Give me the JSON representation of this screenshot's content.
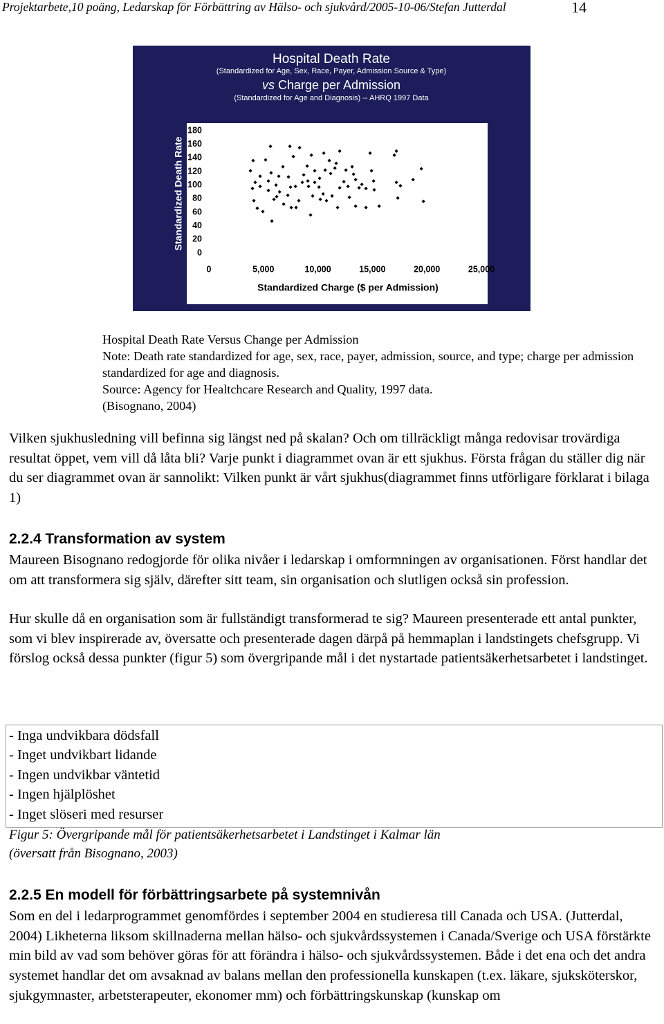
{
  "header": {
    "text": "Projektarbete,10 poäng, Ledarskap för Förbättring av Hälso- och sjukvård/2005-10-06/Stefan Jutterdal",
    "page_number": "14"
  },
  "chart_data": {
    "type": "scatter",
    "title": "Hospital Death Rate",
    "subtitle": "(Standardized for Age, Sex, Race, Payer, Admission Source & Type)",
    "title_2_prefix": "vs",
    "title_2": "Charge per Admission",
    "subtitle_2": "(Standardized for Age and Diagnosis) -- AHRQ 1997 Data",
    "x_label": "Standardized Charge ($ per Admission)",
    "y_label": "Standardized Death Rate",
    "color": "#000000",
    "xlim": [
      0,
      25000
    ],
    "xticks": [
      0,
      {
        "value": 5000,
        "label": "5,000"
      },
      {
        "value": 10000,
        "label": "10,000"
      },
      {
        "value": 15000,
        "label": "15,000"
      },
      {
        "value": 20000,
        "label": "20,000"
      },
      {
        "value": 25000,
        "label": "25,000"
      }
    ],
    "ylim": [
      0,
      180
    ],
    "yticks": [
      0,
      20,
      40,
      60,
      80,
      100,
      120,
      140,
      160,
      180
    ],
    "x": [
      5650,
      7430,
      8320,
      12000,
      14790,
      17200,
      17010,
      10540,
      3810,
      4060,
      5200,
      6790,
      7750,
      9020,
      9400,
      11050,
      11680,
      13140,
      13270,
      14920,
      19490,
      18730,
      19680,
      17200,
      17570,
      17330,
      15620,
      14410,
      13460,
      11810,
      9330,
      5780,
      4950,
      4440,
      4130,
      4000,
      4700,
      5460,
      6160,
      6480,
      5970,
      6860,
      7560,
      8000,
      8250,
      7940,
      8570,
      9140,
      9710,
      10100,
      10480,
      10790,
      11300,
      12000,
      12380,
      12760,
      12890,
      13780,
      14030,
      14410,
      15110,
      15170,
      10160,
      10670,
      11170,
      11560,
      9710,
      8700,
      7300,
      6410,
      5710,
      4700,
      4250,
      6220,
      7240,
      9520,
      10220,
      12570,
      13460,
      5460,
      7490,
      9080
    ],
    "values": [
      157,
      157,
      155,
      150,
      147,
      150,
      144,
      147,
      121,
      136,
      137,
      127,
      142,
      128,
      144,
      136,
      132,
      127,
      116,
      121,
      124,
      108,
      76,
      104,
      99,
      81,
      69,
      67,
      69,
      67,
      56,
      47,
      61,
      66,
      77,
      95,
      98,
      106,
      100,
      90,
      79,
      72,
      67,
      67,
      77,
      98,
      104,
      98,
      104,
      97,
      87,
      77,
      84,
      96,
      105,
      98,
      82,
      96,
      101,
      95,
      106,
      93,
      110,
      122,
      117,
      125,
      121,
      115,
      112,
      113,
      118,
      113,
      104,
      83,
      85,
      84,
      79,
      122,
      108,
      92,
      97,
      106
    ]
  },
  "captions": [
    "Hospital Death Rate Versus Change per Admission",
    "Note: Death rate standardized for age, sex, race, payer, admission, source, and type; charge per admission standardized for age and diagnosis.",
    "Source: Agency for Healtchcare Research and Quality, 1997 data.",
    "(Bisognano, 2004)"
  ],
  "paragraph_1": "Vilken sjukhusledning vill befinna sig längst ned på skalan? Och om tillräckligt många redovisar trovärdiga resultat öppet, vem vill då låta bli? Varje punkt i diagrammet ovan är ett sjukhus. Första frågan du ställer dig när du ser diagrammet ovan är sannolikt: Vilken punkt är vårt sjukhus(diagrammet finns utförligare förklarat i bilaga 1)",
  "section_224": {
    "heading": "2.2.4 Transformation av system",
    "paragraphs": [
      "Maureen Bisognano redogjorde för olika nivåer i ledarskap i omformningen av organisationen. Först handlar det om att transformera sig själv, därefter sitt team, sin organisation och slutligen också sin profession.",
      "Hur skulle då en organisation som är fullständigt transformerad te sig? Maureen presenterade ett antal punkter, som vi blev inspirerade av, översatte och presenterade dagen därpå på hemmaplan i landstingets chefsgrupp. Vi förslog också dessa punkter (figur 5) som övergripande mål i det nystartade patientsäkerhetsarbetet i landstinget."
    ]
  },
  "figure_5": {
    "items": [
      "- Inga undvikbara dödsfall",
      "- Inget undvikbart lidande",
      "- Ingen undvikbar väntetid",
      "- Ingen hjälplöshet",
      "- Inget slöseri med resurser"
    ],
    "caption": [
      "Figur 5: Övergripande mål för patientsäkerhetsarbetet i Landstinget i Kalmar län",
      "(översatt från Bisognano, 2003)"
    ]
  },
  "section_225": {
    "heading": "2.2.5 En modell för förbättringsarbete på systemnivån",
    "paragraph": "Som en del i ledarprogrammet genomfördes i september 2004 en studieresa till Canada och USA. (Jutterdal, 2004) Likheterna liksom skillnaderna mellan hälso- och sjukvårdssystemen i Canada/Sverige och USA förstärkte min bild av vad som behöver göras för att förändra i hälso- och sjukvårdssystemen. Både i det ena och det andra systemet handlar det om avsaknad av balans mellan den professionella kunskapen (t.ex. läkare, sjuksköterskor, sjukgymnaster, arbetsterapeuter, ekonomer mm) och förbättringskunskap (kunskap om"
  }
}
